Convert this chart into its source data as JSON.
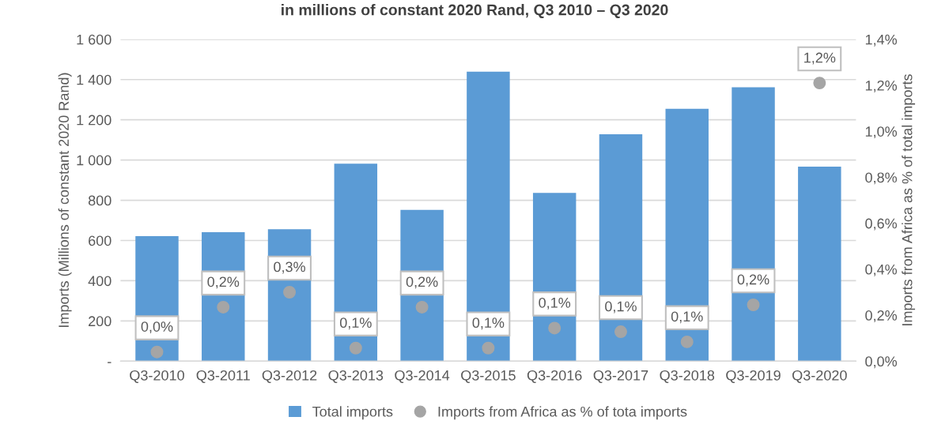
{
  "chart_data": {
    "type": "bar",
    "title": "in millions of constant 2020 Rand, Q3 2010 – Q3 2020",
    "categories": [
      "Q3-2010",
      "Q3-2011",
      "Q3-2012",
      "Q3-2013",
      "Q3-2014",
      "Q3-2015",
      "Q3-2016",
      "Q3-2017",
      "Q3-2018",
      "Q3-2019",
      "Q3-2020"
    ],
    "series": [
      {
        "name": "Total imports",
        "color": "#5b9bd5",
        "values": [
          622,
          641,
          656,
          982,
          752,
          1439,
          837,
          1128,
          1255,
          1362,
          967
        ]
      },
      {
        "name": "Imports from Africa as % of tota imports",
        "type": "scatter",
        "axis": "y2",
        "color": "#a5a5a5",
        "values": [
          0.04,
          0.235,
          0.3,
          0.057,
          0.235,
          0.057,
          0.144,
          0.128,
          0.084,
          0.245,
          1.21
        ],
        "value_labels": [
          "0,0%",
          "0,2%",
          "0,3%",
          "0,1%",
          "0,2%",
          "0,1%",
          "0,1%",
          "0,1%",
          "0,1%",
          "0,2%",
          "1,2%"
        ]
      }
    ],
    "ylabel": "Imports (Millions of constant 2020 Rand)",
    "y2label": "Imports from Africa as % of total imports",
    "ylim": [
      0,
      1600
    ],
    "yticks": [
      {
        "value": 0,
        "label": "-"
      },
      {
        "value": 200,
        "label": "200"
      },
      {
        "value": 400,
        "label": "400"
      },
      {
        "value": 600,
        "label": "600"
      },
      {
        "value": 800,
        "label": "800"
      },
      {
        "value": 1000,
        "label": "1 000"
      },
      {
        "value": 1200,
        "label": "1 200"
      },
      {
        "value": 1400,
        "label": "1 400"
      },
      {
        "value": 1600,
        "label": "1 600"
      }
    ],
    "y2lim": [
      0,
      1.4
    ],
    "y2ticks": [
      {
        "value": 0,
        "label": "0,0%"
      },
      {
        "value": 0.2,
        "label": "0,2%"
      },
      {
        "value": 0.4,
        "label": "0,4%"
      },
      {
        "value": 0.6,
        "label": "0,6%"
      },
      {
        "value": 0.8,
        "label": "0,8%"
      },
      {
        "value": 1.0,
        "label": "1,0%"
      },
      {
        "value": 1.2,
        "label": "1,2%"
      },
      {
        "value": 1.4,
        "label": "1,4%"
      }
    ],
    "grid": "y",
    "legend": "bottom",
    "marker": "circle"
  }
}
